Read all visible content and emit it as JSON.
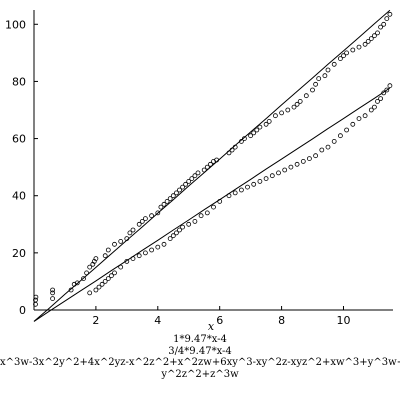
{
  "chart_data": {
    "type": "scatter",
    "title": "",
    "xlabel": "x",
    "ylabel": "",
    "xlim": [
      0,
      11.6
    ],
    "ylim": [
      0,
      105
    ],
    "xticks": [
      2,
      4,
      6,
      8,
      10
    ],
    "yticks": [
      0,
      20,
      40,
      60,
      80,
      100
    ],
    "grid": false,
    "legend_position": "bottom",
    "legend": [
      "1*9.47*x-4",
      "3/4*9.47*x-4",
      "x^3w-3x^2y^2+4x^2yz-x^2z^2+x^2zw+6xy^3-xy^2z-xyz^2+xw^3+y^3w+",
      "y^2z^2+z^3w"
    ],
    "series": [
      {
        "style": "line",
        "x": [
          0,
          0.5,
          1,
          1.5,
          2,
          2.5,
          3,
          3.5,
          4,
          4.5,
          5,
          5.5,
          6,
          6.5,
          7,
          7.5,
          8,
          8.5,
          9,
          9.5,
          10,
          10.5,
          11,
          11.5
        ],
        "y": [
          -4,
          0.7,
          5.5,
          10.2,
          14.9,
          19.7,
          24.4,
          29.1,
          33.9,
          38.6,
          43.4,
          48.1,
          52.8,
          57.6,
          62.3,
          67.0,
          71.8,
          76.5,
          81.2,
          86.0,
          90.7,
          95.4,
          100.2,
          104.9
        ]
      },
      {
        "style": "line",
        "x": [
          0,
          0.5,
          1,
          1.5,
          2,
          2.5,
          3,
          3.5,
          4,
          4.5,
          5,
          5.5,
          6,
          6.5,
          7,
          7.5,
          8,
          8.5,
          9,
          9.5,
          10,
          10.5,
          11,
          11.5
        ],
        "y": [
          -4,
          -0.4,
          3.1,
          6.7,
          10.2,
          13.8,
          17.3,
          20.9,
          24.4,
          28.0,
          31.5,
          35.1,
          38.6,
          42.2,
          45.7,
          49.3,
          52.8,
          56.4,
          59.9,
          63.5,
          67.0,
          70.6,
          74.1,
          77.7
        ]
      },
      {
        "style": "markers",
        "x": [
          0.05,
          0.05,
          0.06,
          0.6,
          0.6,
          0.6,
          1.2,
          1.3,
          1.4,
          1.6,
          1.7,
          1.8,
          1.9,
          1.95,
          2.0,
          2.3,
          2.4,
          2.6,
          2.8,
          3.0,
          3.1,
          3.2,
          3.4,
          3.5,
          3.6,
          3.8,
          4.0,
          4.1,
          4.2,
          4.3,
          4.4,
          4.5,
          4.6,
          4.7,
          4.8,
          4.9,
          5.0,
          5.1,
          5.2,
          5.3,
          5.5,
          5.6,
          5.7,
          5.8,
          5.9,
          6.3,
          6.4,
          6.5,
          6.7,
          6.8,
          7.0,
          7.1,
          7.2,
          7.3,
          7.5,
          7.6,
          7.8,
          8.0,
          8.2,
          8.4,
          8.5,
          8.6,
          8.8,
          9.0,
          9.1,
          9.2,
          9.4,
          9.5,
          9.7,
          9.9,
          10.0,
          10.1,
          10.3,
          10.5,
          10.7,
          10.8,
          10.9,
          11.0,
          11.1,
          11.2,
          11.3,
          11.4,
          11.5
        ],
        "y": [
          2,
          3.5,
          4.5,
          4,
          6,
          7,
          7,
          9,
          9.5,
          11,
          13,
          15,
          16,
          17,
          18,
          19,
          21,
          23,
          24,
          25,
          27,
          28,
          30,
          31,
          32,
          33,
          34,
          36,
          37,
          38,
          39,
          40,
          41,
          42,
          43,
          44,
          45,
          46,
          47,
          48,
          49,
          50,
          51,
          52,
          52.5,
          55,
          56,
          57,
          59,
          60,
          61,
          62,
          63,
          64,
          65,
          66,
          68,
          69,
          70,
          71,
          72,
          73,
          75,
          77,
          79,
          81,
          82,
          84,
          86,
          88,
          89,
          90,
          91,
          92,
          93,
          94,
          95,
          96,
          97,
          99,
          100,
          102,
          103.5
        ]
      },
      {
        "style": "markers",
        "x": [
          1.8,
          2.0,
          2.1,
          2.2,
          2.3,
          2.4,
          2.5,
          2.6,
          2.8,
          3.0,
          3.2,
          3.4,
          3.6,
          3.8,
          4.0,
          4.2,
          4.4,
          4.5,
          4.6,
          4.7,
          4.8,
          5.0,
          5.2,
          5.4,
          5.6,
          5.8,
          6.0,
          6.3,
          6.5,
          6.7,
          6.9,
          7.1,
          7.3,
          7.5,
          7.7,
          7.9,
          8.1,
          8.3,
          8.5,
          8.7,
          8.9,
          9.1,
          9.3,
          9.5,
          9.7,
          9.9,
          10.1,
          10.3,
          10.5,
          10.7,
          10.9,
          11.0,
          11.1,
          11.2,
          11.3,
          11.4,
          11.5
        ],
        "y": [
          6,
          7,
          8,
          9,
          10,
          11,
          12,
          13,
          15,
          17,
          18,
          19,
          20,
          21,
          22,
          23,
          25,
          26,
          27,
          28,
          29,
          30,
          31,
          33,
          34,
          36,
          38,
          40,
          41,
          42,
          43,
          44,
          45,
          46,
          47,
          48,
          49,
          50,
          51,
          52,
          53,
          54,
          56,
          57,
          59,
          61,
          63,
          65,
          67,
          68,
          70,
          71,
          73,
          74,
          76,
          77,
          78.5
        ]
      }
    ]
  }
}
